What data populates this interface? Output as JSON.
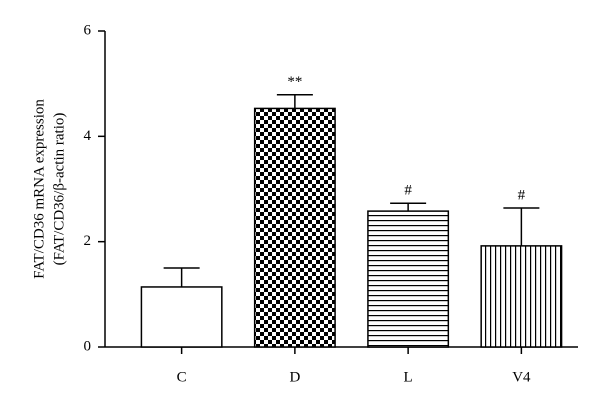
{
  "chart_data": {
    "type": "bar",
    "y_label": [
      "FAT/CD36 mRNA expression",
      "(FAT/CD36/β-actin ratio)"
    ],
    "categories": [
      "C",
      "D",
      "L",
      "V4"
    ],
    "values": [
      1.14,
      4.53,
      2.58,
      1.92
    ],
    "errors": [
      0.36,
      0.26,
      0.15,
      0.72
    ],
    "patterns": [
      "plain",
      "checker",
      "hlines",
      "vlines"
    ],
    "color": "#000000",
    "annotations": [
      {
        "category": "D",
        "text": "**"
      },
      {
        "category": "L",
        "text": "#"
      },
      {
        "category": "V4",
        "text": "#"
      }
    ],
    "ylim": [
      0,
      6
    ],
    "yticks": [
      0,
      2,
      4,
      6
    ],
    "grid": false
  }
}
